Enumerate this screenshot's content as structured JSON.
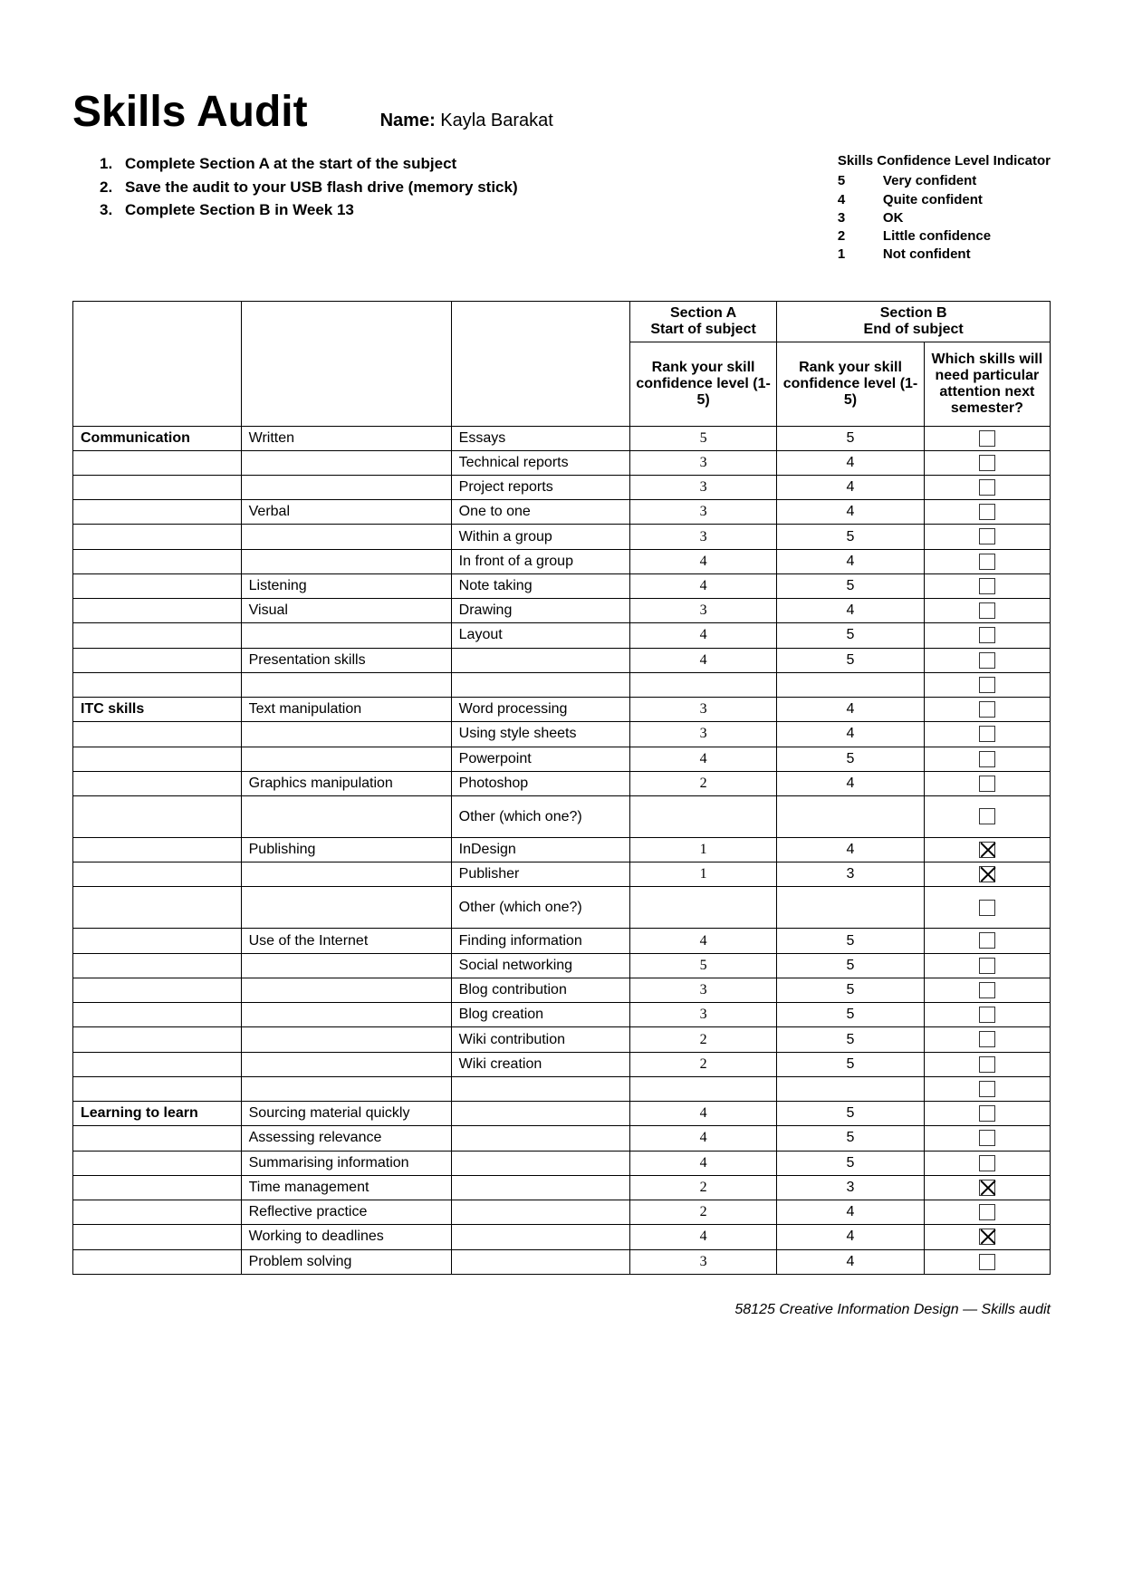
{
  "title": "Skills Audit",
  "name_label": "Name:",
  "name_value": "Kayla Barakat",
  "instructions": [
    {
      "n": "1.",
      "text": "Complete Section A at the start of the subject"
    },
    {
      "n": "2.",
      "text": "Save the audit to your USB flash drive (memory stick)"
    },
    {
      "n": "3.",
      "text": "Complete Section B in Week 13"
    }
  ],
  "legend": {
    "title": "Skills Confidence Level Indicator",
    "items": [
      {
        "n": "5",
        "label": "Very confident"
      },
      {
        "n": "4",
        "label": "Quite confident"
      },
      {
        "n": "3",
        "label": "OK"
      },
      {
        "n": "2",
        "label": "Little confidence"
      },
      {
        "n": "1",
        "label": "Not confident"
      }
    ]
  },
  "table": {
    "section_a_title": "Section A",
    "section_a_sub": "Start of subject",
    "section_b_title": "Section B",
    "section_b_sub": "End of subject",
    "rank_header": "Rank your skill confidence level (1-5)",
    "attention_header": "Which skills will need particular attention next semester?",
    "rows": [
      {
        "cat": "Communication",
        "sub": "Written",
        "skill": "Essays",
        "a": "5",
        "b": "5",
        "checked": false
      },
      {
        "cat": "",
        "sub": "",
        "skill": "Technical reports",
        "a": "3",
        "b": "4",
        "checked": false
      },
      {
        "cat": "",
        "sub": "",
        "skill": "Project reports",
        "a": "3",
        "b": "4",
        "checked": false
      },
      {
        "cat": "",
        "sub": "Verbal",
        "skill": "One to one",
        "a": "3",
        "b": "4",
        "checked": false
      },
      {
        "cat": "",
        "sub": "",
        "skill": "Within a group",
        "a": "3",
        "b": "5",
        "checked": false
      },
      {
        "cat": "",
        "sub": "",
        "skill": "In front of a group",
        "a": "4",
        "b": "4",
        "checked": false
      },
      {
        "cat": "",
        "sub": "Listening",
        "skill": "Note taking",
        "a": "4",
        "b": "5",
        "checked": false
      },
      {
        "cat": "",
        "sub": "Visual",
        "skill": "Drawing",
        "a": "3",
        "b": "4",
        "checked": false
      },
      {
        "cat": "",
        "sub": "",
        "skill": "Layout",
        "a": "4",
        "b": "5",
        "checked": false
      },
      {
        "cat": "",
        "sub": "Presentation skills",
        "skill": "",
        "a": "4",
        "b": "5",
        "checked": false
      },
      {
        "cat": "",
        "sub": "",
        "skill": "",
        "a": "",
        "b": "",
        "checked": false
      },
      {
        "cat": "ITC skills",
        "sub": "Text manipulation",
        "skill": "Word processing",
        "a": "3",
        "b": "4",
        "checked": false
      },
      {
        "cat": "",
        "sub": "",
        "skill": "Using style sheets",
        "a": "3",
        "b": "4",
        "checked": false
      },
      {
        "cat": "",
        "sub": "",
        "skill": "Powerpoint",
        "a": "4",
        "b": "5",
        "checked": false
      },
      {
        "cat": "",
        "sub": "Graphics manipulation",
        "skill": "Photoshop",
        "a": "2",
        "b": "4",
        "checked": false
      },
      {
        "cat": "",
        "sub": "",
        "skill": "Other (which one?)",
        "a": "",
        "b": "",
        "checked": false,
        "tall": true
      },
      {
        "cat": "",
        "sub": "Publishing",
        "skill": "InDesign",
        "a": "1",
        "b": "4",
        "checked": true
      },
      {
        "cat": "",
        "sub": "",
        "skill": "Publisher",
        "a": "1",
        "b": "3",
        "checked": true
      },
      {
        "cat": "",
        "sub": "",
        "skill": "Other (which one?)",
        "a": "",
        "b": "",
        "checked": false,
        "tall": true
      },
      {
        "cat": "",
        "sub": "Use of the Internet",
        "skill": "Finding information",
        "a": "4",
        "b": "5",
        "checked": false
      },
      {
        "cat": "",
        "sub": "",
        "skill": "Social networking",
        "a": "5",
        "b": "5",
        "checked": false
      },
      {
        "cat": "",
        "sub": "",
        "skill": "Blog contribution",
        "a": "3",
        "b": "5",
        "checked": false
      },
      {
        "cat": "",
        "sub": "",
        "skill": "Blog creation",
        "a": "3",
        "b": "5",
        "checked": false
      },
      {
        "cat": "",
        "sub": "",
        "skill": "Wiki contribution",
        "a": "2",
        "b": "5",
        "checked": false
      },
      {
        "cat": "",
        "sub": "",
        "skill": "Wiki creation",
        "a": "2",
        "b": "5",
        "checked": false
      },
      {
        "cat": "",
        "sub": "",
        "skill": "",
        "a": "",
        "b": "",
        "checked": false
      },
      {
        "cat": "Learning to learn",
        "sub": "Sourcing material quickly",
        "skill": "",
        "a": "4",
        "b": "5",
        "checked": false
      },
      {
        "cat": "",
        "sub": "Assessing relevance",
        "skill": "",
        "a": "4",
        "b": "5",
        "checked": false
      },
      {
        "cat": "",
        "sub": "Summarising information",
        "skill": "",
        "a": "4",
        "b": "5",
        "checked": false
      },
      {
        "cat": "",
        "sub": "Time management",
        "skill": "",
        "a": "2",
        "b": "3",
        "checked": true
      },
      {
        "cat": "",
        "sub": "Reflective practice",
        "skill": "",
        "a": "2",
        "b": "4",
        "checked": false
      },
      {
        "cat": "",
        "sub": "Working to deadlines",
        "skill": "",
        "a": "4",
        "b": "4",
        "checked": true
      },
      {
        "cat": "",
        "sub": "Problem solving",
        "skill": "",
        "a": "3",
        "b": "4",
        "checked": false
      }
    ]
  },
  "footer": "58125 Creative Information Design — Skills audit"
}
